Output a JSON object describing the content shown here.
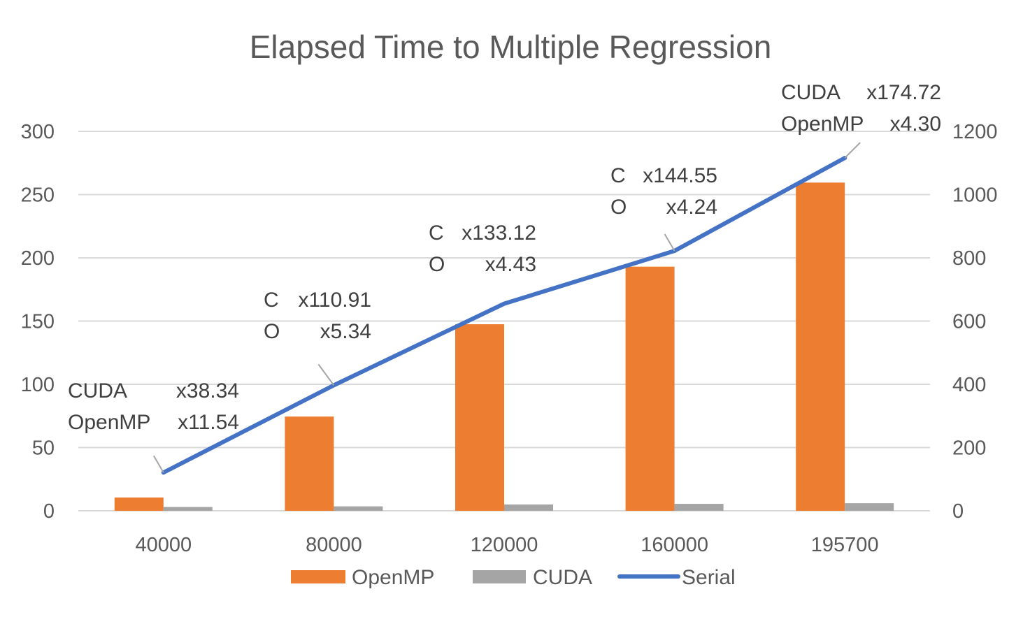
{
  "chart_data": {
    "type": "bar",
    "title": "Elapsed Time to Multiple Regression",
    "categories": [
      "40000",
      "80000",
      "120000",
      "160000",
      "195700"
    ],
    "series": [
      {
        "name": "OpenMP",
        "type": "bar",
        "axis": "left",
        "color": "#ED7D31",
        "values": [
          10.5,
          74.5,
          147.5,
          193.0,
          259.5
        ]
      },
      {
        "name": "CUDA",
        "type": "bar",
        "axis": "left",
        "color": "#A5A5A5",
        "values": [
          3.0,
          3.5,
          5.0,
          5.5,
          6.0
        ]
      },
      {
        "name": "Serial",
        "type": "line",
        "axis": "right",
        "color": "#4472C4",
        "values": [
          121,
          397,
          655,
          822,
          1116
        ]
      }
    ],
    "left_axis": {
      "min": 0,
      "max": 300,
      "ticks": [
        "0",
        "50",
        "100",
        "150",
        "200",
        "250",
        "300"
      ]
    },
    "right_axis": {
      "min": 0,
      "max": 1200,
      "ticks": [
        "0",
        "200",
        "400",
        "600",
        "800",
        "1000",
        "1200"
      ]
    },
    "gridlines": true,
    "legend_position": "bottom",
    "annotations": [
      {
        "category": "40000",
        "lines": [
          [
            "CUDA",
            "x38.34"
          ],
          [
            "OpenMP",
            "x11.54"
          ]
        ]
      },
      {
        "category": "80000",
        "lines": [
          [
            "C",
            "x110.91"
          ],
          [
            "O",
            "x5.34"
          ]
        ]
      },
      {
        "category": "120000",
        "lines": [
          [
            "C",
            "x133.12"
          ],
          [
            "O",
            "x4.43"
          ]
        ]
      },
      {
        "category": "160000",
        "lines": [
          [
            "C",
            "x144.55"
          ],
          [
            "O",
            "x4.24"
          ]
        ]
      },
      {
        "category": "195700",
        "lines": [
          [
            "CUDA",
            "x174.72"
          ],
          [
            "OpenMP",
            "x4.30"
          ]
        ]
      }
    ]
  }
}
